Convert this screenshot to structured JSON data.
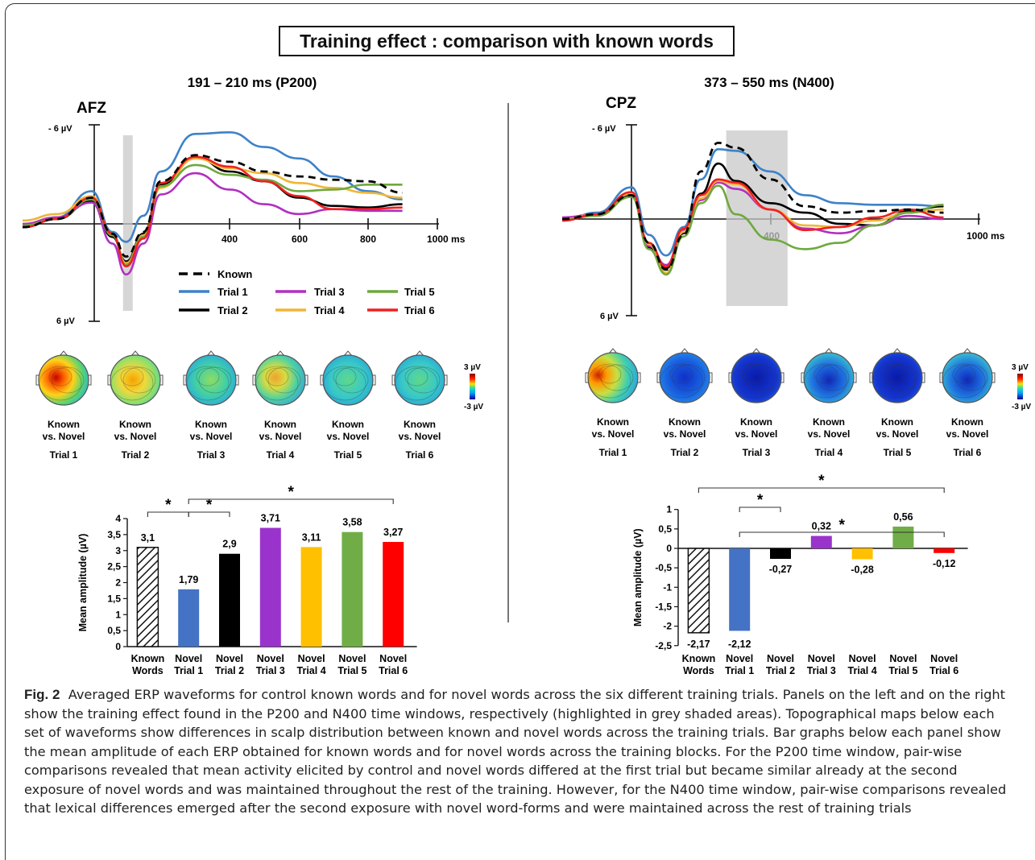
{
  "header": {
    "title": "Training effect : comparison with known words"
  },
  "panels": {
    "left": {
      "window_label": "191 – 210 ms (P200)",
      "electrode": "AFZ",
      "y_top_label": "- 6 µV",
      "y_bottom_label": "6 µV",
      "x_ticks": [
        "400",
        "600",
        "800",
        "1000 ms"
      ],
      "scale_max": "3 µV",
      "scale_min": "-3 µV"
    },
    "right": {
      "window_label": "373 – 550 ms (N400)",
      "electrode": "CPZ",
      "y_top_label": "- 6 µV",
      "y_bottom_label": "6 µV",
      "x_ticks": [
        "400",
        "1000 ms"
      ],
      "scale_max": "3 µV",
      "scale_min": "-3 µV"
    }
  },
  "legend": {
    "known": "Known",
    "trials": [
      "Trial 1",
      "Trial 2",
      "Trial 3",
      "Trial 4",
      "Trial 5",
      "Trial 6"
    ]
  },
  "colors": {
    "known": "#000000",
    "trial1": "#3d82c8",
    "trial2": "#000000",
    "trial3": "#b12fc0",
    "trial4": "#f1b536",
    "trial5": "#6fa83e",
    "trial6": "#f02020",
    "bar_trial1": "#4472c4",
    "bar_trial3": "#9a33cc",
    "bar_trial4": "#ffc000",
    "bar_trial5": "#70ad47",
    "bar_trial6": "#ff0000"
  },
  "topomaps": {
    "line1": "Known",
    "line2": "vs. Novel",
    "trials": [
      "Trial 1",
      "Trial 2",
      "Trial 3",
      "Trial 4",
      "Trial 5",
      "Trial 6"
    ]
  },
  "chart_data": [
    {
      "type": "line",
      "electrode": "AFZ",
      "xlabel": "ms",
      "x_ticks": [
        400,
        600,
        800,
        1000
      ],
      "ylim": [
        6,
        -6
      ],
      "y_axis_inverted": true,
      "highlight_window_ms": [
        191,
        210
      ],
      "series": [
        {
          "name": "Known",
          "x": [
            -100,
            0,
            100,
            160,
            200,
            250,
            300,
            400,
            500,
            600,
            700,
            800,
            900,
            1000
          ],
          "y": [
            0.2,
            -0.3,
            -1.6,
            0.6,
            2.0,
            0.5,
            -2.6,
            -4.2,
            -3.8,
            -3.2,
            -2.9,
            -2.7,
            -2.6,
            -1.9
          ]
        },
        {
          "name": "Trial 1",
          "x": [
            -100,
            0,
            100,
            160,
            200,
            250,
            300,
            400,
            500,
            600,
            700,
            800,
            900,
            1000
          ],
          "y": [
            0.1,
            -0.4,
            -2.0,
            0.5,
            1.1,
            -0.5,
            -3.2,
            -5.5,
            -5.6,
            -4.7,
            -4.0,
            -2.9,
            -2.0,
            -1.5
          ]
        },
        {
          "name": "Trial 2",
          "x": [
            -100,
            0,
            100,
            160,
            200,
            250,
            300,
            400,
            500,
            600,
            700,
            800,
            900,
            1000
          ],
          "y": [
            0.2,
            -0.3,
            -1.4,
            0.8,
            2.3,
            0.6,
            -2.4,
            -4.1,
            -3.2,
            -2.6,
            -1.6,
            -1.1,
            -1.0,
            -1.2
          ]
        },
        {
          "name": "Trial 3",
          "x": [
            -100,
            0,
            100,
            160,
            200,
            250,
            300,
            400,
            500,
            600,
            700,
            800,
            900,
            1000
          ],
          "y": [
            0.0,
            -0.4,
            -1.3,
            1.2,
            3.1,
            1.2,
            -1.8,
            -3.1,
            -2.1,
            -1.2,
            -0.6,
            -0.9,
            -0.8,
            -0.8
          ]
        },
        {
          "name": "Trial 4",
          "x": [
            -100,
            0,
            100,
            160,
            200,
            250,
            300,
            400,
            500,
            600,
            700,
            800,
            900,
            1000
          ],
          "y": [
            -0.2,
            -0.6,
            -1.7,
            0.6,
            2.4,
            0.7,
            -2.2,
            -4.0,
            -3.4,
            -3.1,
            -2.5,
            -2.2,
            -1.9,
            -1.6
          ]
        },
        {
          "name": "Trial 5",
          "x": [
            -100,
            0,
            100,
            160,
            200,
            250,
            300,
            400,
            500,
            600,
            700,
            800,
            900,
            1000
          ],
          "y": [
            0.1,
            -0.3,
            -1.5,
            0.7,
            2.5,
            0.8,
            -2.3,
            -3.6,
            -3.0,
            -2.7,
            -2.0,
            -2.1,
            -2.4,
            -2.4
          ]
        },
        {
          "name": "Trial 6",
          "x": [
            -100,
            0,
            100,
            160,
            200,
            250,
            300,
            400,
            500,
            600,
            700,
            800,
            900,
            1000
          ],
          "y": [
            0.2,
            -0.3,
            -1.6,
            0.6,
            2.6,
            0.9,
            -2.5,
            -4.1,
            -3.5,
            -2.6,
            -1.7,
            -0.9,
            -0.9,
            -1.0
          ]
        }
      ]
    },
    {
      "type": "line",
      "electrode": "CPZ",
      "xlabel": "ms",
      "x_ticks": [
        400,
        1000
      ],
      "ylim": [
        6,
        -6
      ],
      "y_axis_inverted": true,
      "highlight_window_ms": [
        373,
        550
      ],
      "series": [
        {
          "name": "Known",
          "x": [
            -100,
            0,
            100,
            150,
            200,
            250,
            300,
            350,
            400,
            500,
            600,
            700,
            800,
            900,
            1000
          ],
          "y": [
            0.0,
            -0.3,
            -1.5,
            1.5,
            3.2,
            1.0,
            -3.0,
            -4.8,
            -4.5,
            -2.5,
            -0.8,
            -0.4,
            -0.5,
            -0.6,
            -0.4
          ]
        },
        {
          "name": "Trial 1",
          "x": [
            -100,
            0,
            100,
            150,
            200,
            250,
            300,
            350,
            400,
            500,
            600,
            700,
            800,
            900,
            1000
          ],
          "y": [
            0.1,
            -0.4,
            -2.0,
            1.0,
            2.3,
            0.5,
            -2.5,
            -4.4,
            -4.3,
            -3.0,
            -1.5,
            -1.0,
            -0.9,
            -0.9,
            -0.8
          ]
        },
        {
          "name": "Trial 2",
          "x": [
            -100,
            0,
            100,
            150,
            200,
            250,
            300,
            350,
            400,
            500,
            600,
            700,
            800,
            900,
            1000
          ],
          "y": [
            0.0,
            -0.3,
            -1.5,
            1.8,
            3.1,
            0.9,
            -1.6,
            -3.5,
            -2.4,
            -1.0,
            -0.4,
            0.3,
            0.4,
            -0.5,
            -0.8
          ]
        },
        {
          "name": "Trial 3",
          "x": [
            -100,
            0,
            100,
            150,
            200,
            250,
            300,
            350,
            400,
            500,
            600,
            700,
            800,
            900,
            1000
          ],
          "y": [
            -0.1,
            -0.3,
            -1.6,
            1.7,
            2.9,
            0.7,
            -1.2,
            -2.3,
            -1.9,
            -0.6,
            0.6,
            0.9,
            0.4,
            -0.2,
            0.0
          ]
        },
        {
          "name": "Trial 4",
          "x": [
            -100,
            0,
            100,
            150,
            200,
            250,
            300,
            350,
            400,
            500,
            600,
            700,
            800,
            900,
            1000
          ],
          "y": [
            0.0,
            -0.3,
            -1.6,
            1.6,
            3.4,
            0.8,
            -1.3,
            -2.4,
            -2.2,
            -0.6,
            0.4,
            0.5,
            0.1,
            -0.4,
            -0.6
          ]
        },
        {
          "name": "Trial 5",
          "x": [
            -100,
            0,
            100,
            150,
            200,
            250,
            300,
            350,
            400,
            500,
            600,
            700,
            800,
            900,
            1000
          ],
          "y": [
            0.0,
            -0.2,
            -1.4,
            1.9,
            3.5,
            1.1,
            -1.0,
            -2.1,
            -0.3,
            1.3,
            1.9,
            1.5,
            0.4,
            -0.4,
            -0.9
          ]
        },
        {
          "name": "Trial 6",
          "x": [
            -100,
            0,
            100,
            150,
            200,
            250,
            300,
            350,
            400,
            500,
            600,
            700,
            800,
            900,
            1000
          ],
          "y": [
            0.1,
            -0.3,
            -1.7,
            1.5,
            3.0,
            0.6,
            -1.5,
            -2.5,
            -2.3,
            -0.6,
            0.7,
            0.5,
            -0.1,
            -0.6,
            -0.1
          ]
        }
      ]
    },
    {
      "type": "bar",
      "ylabel": "Mean amplitude (µV)",
      "ylim": [
        0,
        4
      ],
      "y_ticks": [
        "0",
        "0,5",
        "1",
        "1,5",
        "2",
        "2,5",
        "3",
        "3,5",
        "4"
      ],
      "categories": [
        [
          "Known",
          "Words"
        ],
        [
          "Novel",
          "Trial 1"
        ],
        [
          "Novel",
          "Trial 2"
        ],
        [
          "Novel",
          "Trial 3"
        ],
        [
          "Novel",
          "Trial 4"
        ],
        [
          "Novel",
          "Trial 5"
        ],
        [
          "Novel",
          "Trial 6"
        ]
      ],
      "values": [
        3.1,
        1.79,
        2.9,
        3.71,
        3.11,
        3.58,
        3.27
      ],
      "value_labels": [
        "3,1",
        "1,79",
        "2,9",
        "3,71",
        "3,11",
        "3,58",
        "3,27"
      ],
      "significance": [
        {
          "from": 0,
          "to": 1,
          "label": "*"
        },
        {
          "from": 1,
          "to": 2,
          "label": "*"
        },
        {
          "from": 1,
          "to": 6,
          "label": "*"
        }
      ]
    },
    {
      "type": "bar",
      "ylabel": "Mean amplitude (µV)",
      "ylim": [
        -2.5,
        1
      ],
      "y_ticks": [
        "-2,5",
        "-2",
        "-1,5",
        "-1",
        "-0,5",
        "0",
        "0,5",
        "1"
      ],
      "categories": [
        [
          "Known",
          "Words"
        ],
        [
          "Novel",
          "Trial 1"
        ],
        [
          "Novel",
          "Trial 2"
        ],
        [
          "Novel",
          "Trial 3"
        ],
        [
          "Novel",
          "Trial 4"
        ],
        [
          "Novel",
          "Trial 5"
        ],
        [
          "Novel",
          "Trial 6"
        ]
      ],
      "values": [
        -2.17,
        -2.12,
        -0.27,
        0.32,
        -0.28,
        0.56,
        -0.12
      ],
      "value_labels": [
        "-2,17",
        "-2,12",
        "-0,27",
        "0,32",
        "-0,28",
        "0,56",
        "-0,12"
      ],
      "significance": [
        {
          "from": 0,
          "to": 6,
          "label": "*"
        },
        {
          "from": 1,
          "to": 6,
          "label": "*"
        },
        {
          "from": 1,
          "to": 2,
          "label": "*"
        }
      ]
    }
  ],
  "caption": {
    "label": "Fig. 2",
    "text": "Averaged ERP waveforms for control known words and for novel words across the six different training trials. Panels on the left and on the right show the training effect found in the P200 and N400 time windows, respectively (highlighted in grey shaded areas). Topographical maps below each set of waveforms show differences in scalp distribution between known and novel words across the training trials. Bar graphs below each panel show the mean amplitude of each ERP obtained for known words and for novel words across the training blocks. For the P200 time window, pair-wise comparisons revealed that mean activity elicited by control and novel words differed at the first trial but became similar already at the second exposure of novel words and was maintained throughout the rest of the training. However, for the N400 time window, pair-wise comparisons revealed that lexical differences emerged after the second exposure with novel word-forms and were maintained across the rest of training trials"
  }
}
